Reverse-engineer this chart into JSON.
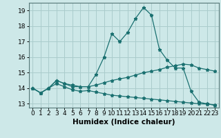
{
  "xlabel": "Humidex (Indice chaleur)",
  "background_color": "#cde8e8",
  "grid_color": "#aacccc",
  "line_color": "#1a7070",
  "xlim": [
    -0.5,
    23.5
  ],
  "ylim": [
    12.75,
    19.5
  ],
  "yticks": [
    13,
    14,
    15,
    16,
    17,
    18,
    19
  ],
  "xticks": [
    0,
    1,
    2,
    3,
    4,
    5,
    6,
    7,
    8,
    9,
    10,
    11,
    12,
    13,
    14,
    15,
    16,
    17,
    18,
    19,
    20,
    21,
    22,
    23
  ],
  "line1_x": [
    0,
    1,
    2,
    3,
    4,
    5,
    6,
    7,
    8,
    9,
    10,
    11,
    12,
    13,
    14,
    15,
    16,
    17,
    18,
    19,
    20,
    21,
    22,
    23
  ],
  "line1_y": [
    14.0,
    13.7,
    14.0,
    14.5,
    14.3,
    14.2,
    14.1,
    14.1,
    14.9,
    16.0,
    17.5,
    17.0,
    17.6,
    18.5,
    19.2,
    18.7,
    16.5,
    15.8,
    15.3,
    15.3,
    13.8,
    13.1,
    13.0,
    12.9
  ],
  "line2_x": [
    0,
    1,
    2,
    3,
    4,
    5,
    6,
    7,
    8,
    9,
    10,
    11,
    12,
    13,
    14,
    15,
    16,
    17,
    18,
    19,
    20,
    21,
    22,
    23
  ],
  "line2_y": [
    14.0,
    13.7,
    14.0,
    14.5,
    14.3,
    14.1,
    14.1,
    14.1,
    14.2,
    14.35,
    14.5,
    14.6,
    14.7,
    14.85,
    15.0,
    15.1,
    15.2,
    15.35,
    15.45,
    15.55,
    15.5,
    15.3,
    15.2,
    15.1
  ],
  "line3_x": [
    0,
    1,
    2,
    3,
    4,
    5,
    6,
    7,
    8,
    9,
    10,
    11,
    12,
    13,
    14,
    15,
    16,
    17,
    18,
    19,
    20,
    21,
    22,
    23
  ],
  "line3_y": [
    14.0,
    13.7,
    14.0,
    14.3,
    14.1,
    13.9,
    13.8,
    13.85,
    13.75,
    13.65,
    13.55,
    13.5,
    13.45,
    13.4,
    13.35,
    13.3,
    13.25,
    13.2,
    13.15,
    13.1,
    13.05,
    13.0,
    12.98,
    12.93
  ],
  "tick_fontsize": 6.5,
  "xlabel_fontsize": 7.5
}
